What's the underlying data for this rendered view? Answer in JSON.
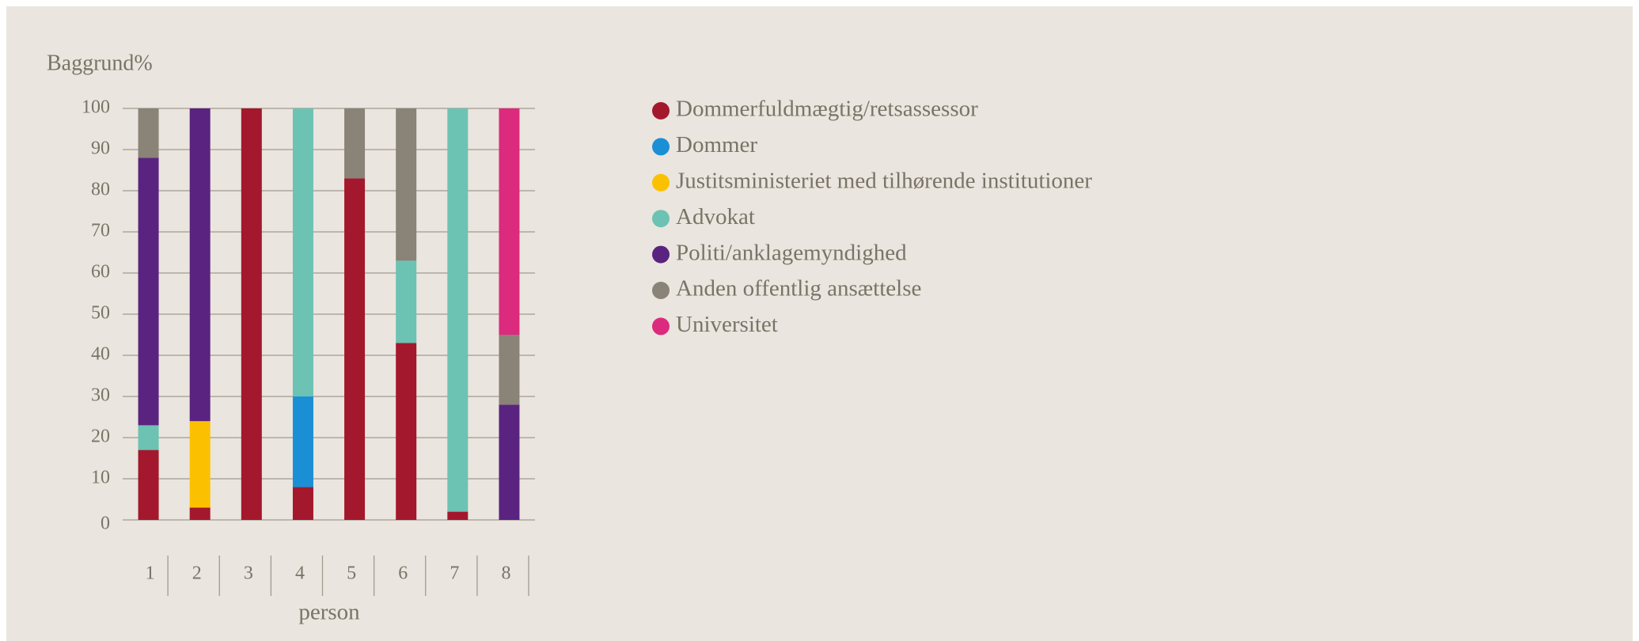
{
  "chart_data": {
    "type": "stacked_bar",
    "title": "Baggrund%",
    "xlabel": "person",
    "categories": [
      "1",
      "2",
      "3",
      "4",
      "5",
      "6",
      "7",
      "8"
    ],
    "series": [
      {
        "name": "Dommerfuldmægtig/retsassessor",
        "color": "#a3182c",
        "values": [
          17,
          3,
          100,
          8,
          83,
          43,
          2,
          0
        ]
      },
      {
        "name": "Dommer",
        "color": "#1a8fd6",
        "values": [
          0,
          0,
          0,
          22,
          0,
          0,
          0,
          0
        ]
      },
      {
        "name": "Justitsministeriet med tilhørende institutioner",
        "color": "#fbc100",
        "values": [
          0,
          21,
          0,
          0,
          0,
          0,
          0,
          0
        ]
      },
      {
        "name": "Advokat",
        "color": "#6cc2b3",
        "values": [
          6,
          0,
          0,
          70,
          0,
          20,
          98,
          0
        ]
      },
      {
        "name": "Politi/anklagemyndighed",
        "color": "#5b2380",
        "values": [
          65,
          76,
          0,
          0,
          0,
          0,
          0,
          28
        ]
      },
      {
        "name": "Anden offentlig ansættelse",
        "color": "#8a8378",
        "values": [
          12,
          0,
          0,
          0,
          17,
          37,
          0,
          17
        ]
      },
      {
        "name": "Universitet",
        "color": "#dc2a7e",
        "values": [
          0,
          0,
          0,
          0,
          0,
          0,
          0,
          55
        ]
      }
    ],
    "ylim": [
      0,
      100
    ],
    "yticks": [
      0,
      10,
      20,
      30,
      40,
      50,
      60,
      70,
      80,
      90,
      100
    ],
    "grid": true,
    "legend": "right"
  }
}
